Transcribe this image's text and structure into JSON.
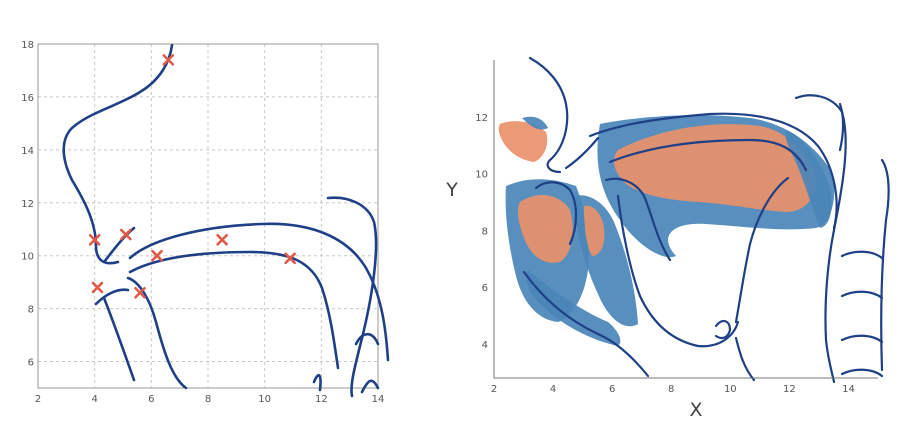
{
  "colors": {
    "contour": "#1f3f86",
    "marker": "#e05a4a",
    "region_blue": "#4a86b8",
    "region_orange": "#e8916a",
    "grid": "#c8c8c8"
  },
  "chart_data": [
    {
      "type": "scatter",
      "title": "",
      "xlabel": "",
      "ylabel": "",
      "xlim": [
        2,
        14
      ],
      "ylim": [
        5,
        18
      ],
      "grid": true,
      "x_ticks": [
        "2",
        "4",
        "6",
        "8",
        "10",
        "12",
        "14"
      ],
      "y_ticks": [
        "6",
        "8",
        "10",
        "12",
        "14",
        "16",
        "18"
      ],
      "y_tick_values": [
        6,
        8,
        10,
        12,
        14,
        16,
        18
      ],
      "x_tick_values": [
        2,
        4,
        6,
        8,
        10,
        12,
        14
      ],
      "marker": "x",
      "points": [
        {
          "x": 6.6,
          "y": 17.4
        },
        {
          "x": 4.0,
          "y": 10.6
        },
        {
          "x": 5.1,
          "y": 10.8
        },
        {
          "x": 6.2,
          "y": 10.0
        },
        {
          "x": 8.5,
          "y": 10.6
        },
        {
          "x": 10.9,
          "y": 9.9
        },
        {
          "x": 4.1,
          "y": 8.8
        },
        {
          "x": 5.6,
          "y": 8.6
        }
      ]
    },
    {
      "type": "area",
      "title": "",
      "xlabel": "X",
      "ylabel": "Y",
      "xlim": [
        2,
        15
      ],
      "ylim": [
        2.8,
        14
      ],
      "grid": false,
      "x_ticks": [
        "2",
        "4",
        "6",
        "8",
        "10",
        "12",
        "14"
      ],
      "x_tick_values": [
        2,
        4,
        6,
        8,
        10,
        12,
        14
      ],
      "y_ticks": [
        "4",
        "6",
        "8",
        "10",
        "12"
      ],
      "y_tick_values": [
        4,
        6,
        8,
        10,
        12
      ]
    }
  ]
}
